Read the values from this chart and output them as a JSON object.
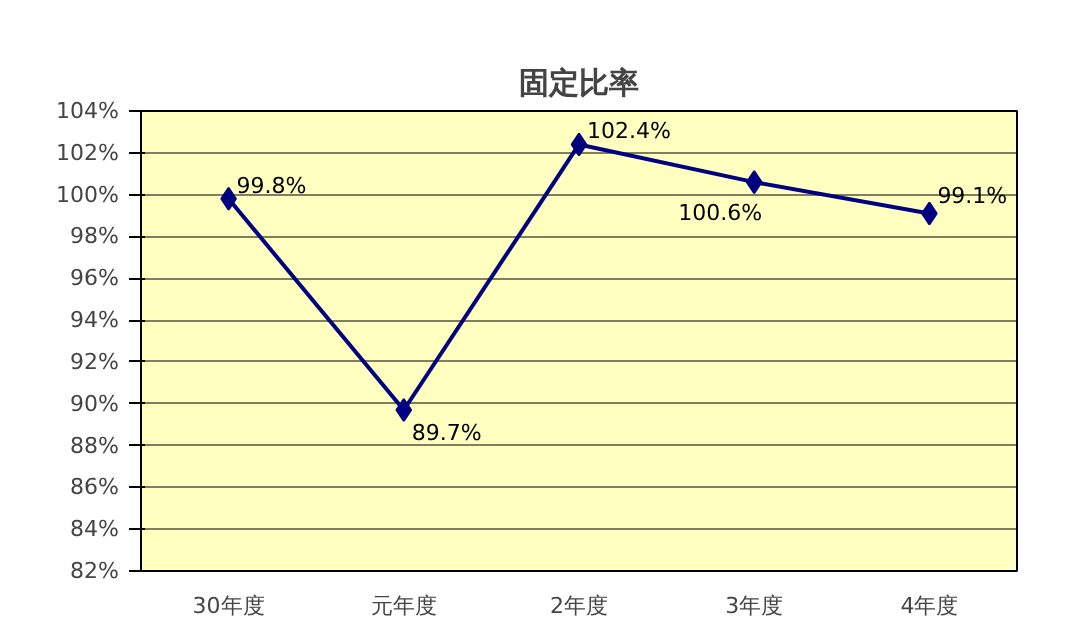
{
  "chart_data": {
    "type": "line",
    "title": "固定比率",
    "categories": [
      "30年度",
      "元年度",
      "2年度",
      "3年度",
      "4年度"
    ],
    "series": [
      {
        "color": "#000080",
        "values": [
          99.8,
          89.7,
          102.4,
          100.6,
          99.1
        ],
        "value_labels": [
          "99.8%",
          "89.7%",
          "102.4%",
          "100.6%",
          "99.1%"
        ]
      }
    ],
    "ylim": [
      82,
      104
    ],
    "yticks": [
      {
        "value": 82,
        "label": "82%"
      },
      {
        "value": 84,
        "label": "84%"
      },
      {
        "value": 86,
        "label": "86%"
      },
      {
        "value": 88,
        "label": "88%"
      },
      {
        "value": 90,
        "label": "90%"
      },
      {
        "value": 92,
        "label": "92%"
      },
      {
        "value": 94,
        "label": "94%"
      },
      {
        "value": 96,
        "label": "96%"
      },
      {
        "value": 98,
        "label": "98%"
      },
      {
        "value": 100,
        "label": "100%"
      },
      {
        "value": 102,
        "label": "102%"
      },
      {
        "value": 104,
        "label": "104%"
      }
    ],
    "grid": "y",
    "marker": "diamond",
    "line_style": "solid"
  }
}
